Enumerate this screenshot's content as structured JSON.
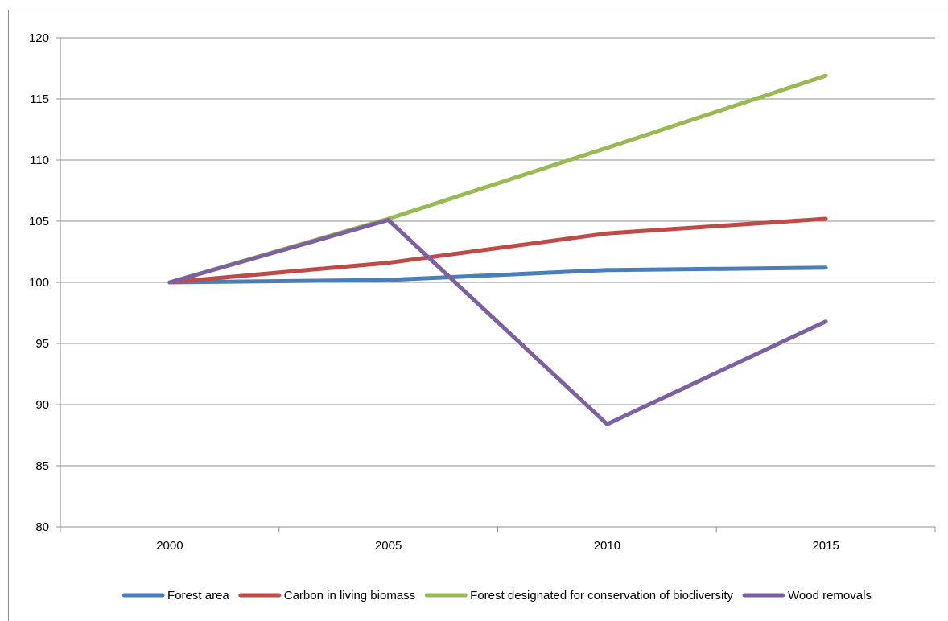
{
  "chart_data": {
    "type": "line",
    "title": "",
    "xlabel": "",
    "ylabel": "",
    "categories": [
      "2000",
      "2005",
      "2010",
      "2015"
    ],
    "ylim": [
      80,
      120
    ],
    "yticks": [
      80,
      85,
      90,
      95,
      100,
      105,
      110,
      115,
      120
    ],
    "grid": true,
    "legend_position": "bottom",
    "series": [
      {
        "name": "Forest area",
        "color": "#4a7ebb",
        "values": [
          100,
          100.2,
          101.0,
          101.2
        ]
      },
      {
        "name": "Carbon in living biomass",
        "color": "#be4b48",
        "values": [
          100,
          101.6,
          104.0,
          105.2
        ]
      },
      {
        "name": "Forest designated for conservation of biodiversity",
        "color": "#98b954",
        "values": [
          100,
          105.2,
          111.0,
          116.9
        ]
      },
      {
        "name": "Wood removals",
        "color": "#7d60a0",
        "values": [
          100,
          105.1,
          88.4,
          96.8
        ]
      }
    ]
  }
}
